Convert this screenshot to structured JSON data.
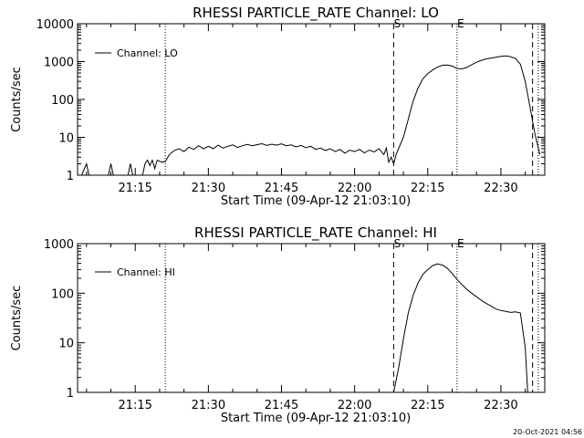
{
  "chart_data": [
    {
      "type": "line",
      "title": "RHESSI PARTICLE_RATE Channel: LO",
      "xlabel": "Start Time (09-Apr-12 21:03:10)",
      "ylabel": "Counts/sec",
      "y_scale": "log",
      "ylim": [
        1,
        10000
      ],
      "xlim": [
        "21:03:10",
        "22:39:00"
      ],
      "y_ticks": [
        "1",
        "10",
        "100",
        "1000",
        "10000"
      ],
      "x_ticks": [
        "21:15",
        "21:30",
        "21:45",
        "22:00",
        "22:15",
        "22:30"
      ],
      "legend": {
        "entries": [
          "Channel: LO"
        ],
        "placement": "top-left"
      },
      "markers": [
        {
          "time": "21:21:10",
          "style": "dotted",
          "label": ""
        },
        {
          "time": "22:08:00",
          "style": "dashed",
          "label": "S"
        },
        {
          "time": "22:21:00",
          "style": "dotted",
          "label": "E"
        },
        {
          "time": "22:36:30",
          "style": "dashed",
          "label": ""
        },
        {
          "time": "22:37:40",
          "style": "dotted",
          "label": ""
        }
      ],
      "series": [
        {
          "name": "Channel: LO",
          "points": [
            [
              "21:04:00",
              1
            ],
            [
              "21:05:00",
              2
            ],
            [
              "21:05:30",
              1
            ],
            [
              "21:09:30",
              1
            ],
            [
              "21:10:00",
              2
            ],
            [
              "21:10:30",
              1
            ],
            [
              "21:13:30",
              1
            ],
            [
              "21:14:00",
              2
            ],
            [
              "21:14:30",
              1
            ],
            [
              "21:16:30",
              1
            ],
            [
              "21:17:00",
              2
            ],
            [
              "21:17:30",
              2.5
            ],
            [
              "21:18:00",
              1.8
            ],
            [
              "21:18:30",
              2.5
            ],
            [
              "21:19:00",
              1.5
            ],
            [
              "21:19:30",
              2.5
            ],
            [
              "21:20:30",
              2.2
            ],
            [
              "21:21:10",
              2.3
            ],
            [
              "21:22:00",
              3.5
            ],
            [
              "21:23:00",
              4.5
            ],
            [
              "21:24:00",
              5
            ],
            [
              "21:25:00",
              4.2
            ],
            [
              "21:26:00",
              5.5
            ],
            [
              "21:27:00",
              4.8
            ],
            [
              "21:28:00",
              6
            ],
            [
              "21:29:00",
              5
            ],
            [
              "21:30:00",
              5.8
            ],
            [
              "21:31:00",
              5
            ],
            [
              "21:32:00",
              6.2
            ],
            [
              "21:33:00",
              5.2
            ],
            [
              "21:34:00",
              5.8
            ],
            [
              "21:35:00",
              6.3
            ],
            [
              "21:36:00",
              5.4
            ],
            [
              "21:37:00",
              6
            ],
            [
              "21:38:00",
              6.5
            ],
            [
              "21:39:00",
              6
            ],
            [
              "21:40:00",
              6.4
            ],
            [
              "21:41:00",
              6.8
            ],
            [
              "21:42:00",
              6.1
            ],
            [
              "21:43:00",
              6.6
            ],
            [
              "21:44:00",
              6.2
            ],
            [
              "21:45:00",
              6.7
            ],
            [
              "21:46:00",
              6
            ],
            [
              "21:47:00",
              6.3
            ],
            [
              "21:48:00",
              5.6
            ],
            [
              "21:49:00",
              6.1
            ],
            [
              "21:50:00",
              5.3
            ],
            [
              "21:51:00",
              5.8
            ],
            [
              "21:52:00",
              4.8
            ],
            [
              "21:53:00",
              5.2
            ],
            [
              "21:54:00",
              4.5
            ],
            [
              "21:55:00",
              5
            ],
            [
              "21:56:00",
              4.2
            ],
            [
              "21:57:00",
              4.8
            ],
            [
              "21:58:00",
              3.8
            ],
            [
              "21:59:00",
              4.6
            ],
            [
              "22:00:00",
              4.2
            ],
            [
              "22:01:00",
              4.8
            ],
            [
              "22:02:00",
              3.9
            ],
            [
              "22:03:00",
              4.6
            ],
            [
              "22:04:00",
              4.1
            ],
            [
              "22:05:00",
              5
            ],
            [
              "22:06:00",
              3.5
            ],
            [
              "22:06:30",
              5.2
            ],
            [
              "22:07:00",
              2.2
            ],
            [
              "22:07:30",
              3
            ],
            [
              "22:08:00",
              2
            ],
            [
              "22:08:30",
              3.5
            ],
            [
              "22:09:00",
              5
            ],
            [
              "22:10:00",
              10
            ],
            [
              "22:11:00",
              30
            ],
            [
              "22:12:00",
              90
            ],
            [
              "22:13:00",
              200
            ],
            [
              "22:14:00",
              350
            ],
            [
              "22:15:00",
              480
            ],
            [
              "22:16:00",
              600
            ],
            [
              "22:17:00",
              720
            ],
            [
              "22:18:00",
              800
            ],
            [
              "22:19:00",
              810
            ],
            [
              "22:20:00",
              760
            ],
            [
              "22:21:00",
              660
            ],
            [
              "22:22:00",
              640
            ],
            [
              "22:23:00",
              700
            ],
            [
              "22:24:00",
              830
            ],
            [
              "22:25:00",
              960
            ],
            [
              "22:26:00",
              1080
            ],
            [
              "22:27:00",
              1180
            ],
            [
              "22:28:00",
              1240
            ],
            [
              "22:29:00",
              1300
            ],
            [
              "22:30:00",
              1380
            ],
            [
              "22:31:00",
              1420
            ],
            [
              "22:32:00",
              1350
            ],
            [
              "22:33:00",
              1200
            ],
            [
              "22:34:00",
              850
            ],
            [
              "22:35:00",
              300
            ],
            [
              "22:36:00",
              60
            ],
            [
              "22:37:00",
              12
            ],
            [
              "22:38:00",
              3.5
            ]
          ]
        }
      ]
    },
    {
      "type": "line",
      "title": "RHESSI PARTICLE_RATE Channel: HI",
      "xlabel": "Start Time (09-Apr-12 21:03:10)",
      "ylabel": "Counts/sec",
      "y_scale": "log",
      "ylim": [
        1,
        1000
      ],
      "xlim": [
        "21:03:10",
        "22:39:00"
      ],
      "y_ticks": [
        "1",
        "10",
        "100",
        "1000"
      ],
      "x_ticks": [
        "21:15",
        "21:30",
        "21:45",
        "22:00",
        "22:15",
        "22:30"
      ],
      "legend": {
        "entries": [
          "Channel: HI"
        ],
        "placement": "top-left"
      },
      "markers": [
        {
          "time": "21:21:10",
          "style": "dotted",
          "label": ""
        },
        {
          "time": "22:08:00",
          "style": "dashed",
          "label": "S"
        },
        {
          "time": "22:21:00",
          "style": "dotted",
          "label": "E"
        },
        {
          "time": "22:36:30",
          "style": "dashed",
          "label": ""
        },
        {
          "time": "22:37:40",
          "style": "dotted",
          "label": ""
        }
      ],
      "series": [
        {
          "name": "Channel: HI",
          "points": [
            [
              "22:08:00",
              1
            ],
            [
              "22:09:00",
              3
            ],
            [
              "22:10:00",
              12
            ],
            [
              "22:11:00",
              40
            ],
            [
              "22:12:00",
              90
            ],
            [
              "22:13:00",
              160
            ],
            [
              "22:14:00",
              240
            ],
            [
              "22:15:00",
              300
            ],
            [
              "22:16:00",
              360
            ],
            [
              "22:17:00",
              390
            ],
            [
              "22:18:00",
              370
            ],
            [
              "22:19:00",
              320
            ],
            [
              "22:20:00",
              250
            ],
            [
              "22:21:00",
              190
            ],
            [
              "22:22:00",
              150
            ],
            [
              "22:23:00",
              120
            ],
            [
              "22:24:00",
              100
            ],
            [
              "22:25:00",
              85
            ],
            [
              "22:26:00",
              72
            ],
            [
              "22:27:00",
              62
            ],
            [
              "22:28:00",
              55
            ],
            [
              "22:29:00",
              48
            ],
            [
              "22:30:00",
              45
            ],
            [
              "22:31:00",
              43
            ],
            [
              "22:32:00",
              41
            ],
            [
              "22:33:00",
              42
            ],
            [
              "22:34:00",
              40
            ],
            [
              "22:35:00",
              8
            ],
            [
              "22:35:30",
              1
            ]
          ]
        }
      ]
    }
  ],
  "footer": {
    "timestamp": "20-Oct-2021 04:56"
  }
}
